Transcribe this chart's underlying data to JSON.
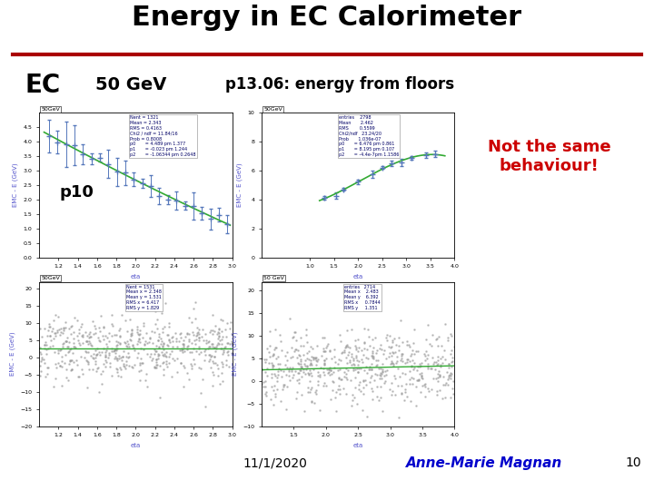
{
  "title": "Energy in EC Calorimeter",
  "title_fontsize": 22,
  "title_color": "#000000",
  "separator_color": "#aa0000",
  "ec_label": "EC",
  "ec_bg": "#00dd00",
  "ec_fg": "#000000",
  "gev_label": "50 GeV",
  "gev_bg": "#ff9933",
  "gev_fg": "#000000",
  "p10_label": "p10",
  "p10_bg": "#ff9933",
  "p10_fg": "#000000",
  "p13_label": "p13.06: energy from floors",
  "p13_bg": "#ff9933",
  "p13_fg": "#000000",
  "not_same_label": "Not the same\nbehaviour!",
  "not_same_color": "#cc0000",
  "not_same_bg": "#ffff99",
  "author": "Anne-Marie Magnan",
  "author_color": "#0000cc",
  "date": "11/1/2020",
  "page": "10",
  "footer_color": "#000000",
  "plot_color": "#5577bb",
  "plot_line_color": "#33aa33",
  "scatter_color": "#999999",
  "subplot_label_color": "#5555cc",
  "tag_color": "#0000aa",
  "stats_color": "#000066"
}
